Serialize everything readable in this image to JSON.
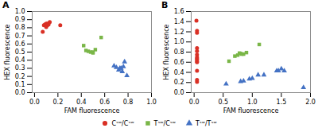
{
  "chart_data": [
    {
      "type": "scatter",
      "title": "A",
      "xlabel": "FAM fluorescence",
      "ylabel": "HEX fluorescence",
      "xlim": [
        -0.02,
        1.0
      ],
      "ylim": [
        0,
        1.0
      ],
      "xticks": [
        {
          "value": 0,
          "label": "0.0"
        },
        0.2,
        0.4,
        0.6,
        0.8,
        {
          "value": 1.0,
          "label": "1.0"
        }
      ],
      "yticks": [
        {
          "value": 0,
          "label": "0.0"
        },
        0.1,
        0.2,
        0.3,
        0.4,
        0.5,
        0.6,
        0.7,
        0.8,
        0.9,
        {
          "value": 1.0,
          "label": "1.0"
        }
      ],
      "legend": "bottom",
      "series": [
        {
          "name": "Cˢʷ/Cˢʷ",
          "color": "#d93025",
          "marker": "circle",
          "x": [
            0.07,
            0.08,
            0.09,
            0.1,
            0.11,
            0.11,
            0.12,
            0.13,
            0.1,
            0.22
          ],
          "values": [
            0.75,
            0.83,
            0.84,
            0.85,
            0.85,
            0.83,
            0.84,
            0.87,
            0.81,
            0.83
          ]
        },
        {
          "name": "Tˢʷ/Cˢʷ",
          "color": "#7ab648",
          "marker": "square",
          "x": [
            0.42,
            0.44,
            0.46,
            0.48,
            0.5,
            0.5,
            0.52,
            0.57
          ],
          "values": [
            0.58,
            0.52,
            0.51,
            0.5,
            0.5,
            0.49,
            0.53,
            0.68
          ]
        },
        {
          "name": "Tˢʷ/Tˢʷ",
          "color": "#4472c4",
          "marker": "triangle",
          "x": [
            0.68,
            0.7,
            0.72,
            0.73,
            0.74,
            0.75,
            0.76,
            0.77,
            0.79
          ],
          "values": [
            0.33,
            0.31,
            0.28,
            0.3,
            0.3,
            0.26,
            0.32,
            0.38,
            0.21
          ]
        }
      ]
    },
    {
      "type": "scatter",
      "title": "B",
      "xlabel": "FAM fluorescence",
      "ylabel": "HEX fluorescence",
      "xlim": [
        -0.05,
        2.0
      ],
      "ylim": [
        0.0,
        1.6
      ],
      "xticks": [
        {
          "value": 0.0,
          "label": "0.0"
        },
        0.5,
        {
          "value": 1.0,
          "label": "1.0"
        },
        1.5,
        {
          "value": 2.0,
          "label": "2.0"
        }
      ],
      "yticks": [
        {
          "value": 0.0,
          "label": "0.0"
        },
        0.2,
        0.4,
        0.6,
        0.8,
        {
          "value": 1.0,
          "label": "1.0"
        },
        1.2,
        1.4,
        1.6
      ],
      "legend": "bottom",
      "series": [
        {
          "name": "Cˢʷ/Cˢʷ",
          "color": "#d93025",
          "marker": "circle",
          "x": [
            0.04,
            0.05,
            0.05,
            0.05,
            0.05,
            0.05,
            0.05,
            0.05,
            0.05,
            0.05,
            0.05,
            0.05,
            0.05,
            0.05
          ],
          "values": [
            1.42,
            1.22,
            1.18,
            0.88,
            0.82,
            0.75,
            0.7,
            0.67,
            0.65,
            0.62,
            0.6,
            0.43,
            0.25,
            0.21
          ]
        },
        {
          "name": "Tˢʷ/Cˢʷ",
          "color": "#7ab648",
          "marker": "square",
          "x": [
            0.6,
            0.7,
            0.75,
            0.78,
            0.8,
            0.82,
            0.85,
            0.9,
            1.12
          ],
          "values": [
            0.62,
            0.72,
            0.74,
            0.78,
            0.77,
            0.76,
            0.76,
            0.79,
            0.95
          ]
        },
        {
          "name": "Tˢʷ/Tˢʷ",
          "color": "#4472c4",
          "marker": "triangle",
          "x": [
            0.55,
            0.8,
            0.85,
            0.95,
            1.0,
            1.1,
            1.2,
            1.42,
            1.45,
            1.5,
            1.55,
            1.88
          ],
          "values": [
            0.17,
            0.22,
            0.23,
            0.27,
            0.28,
            0.35,
            0.35,
            0.43,
            0.43,
            0.47,
            0.43,
            0.1
          ]
        }
      ]
    }
  ]
}
